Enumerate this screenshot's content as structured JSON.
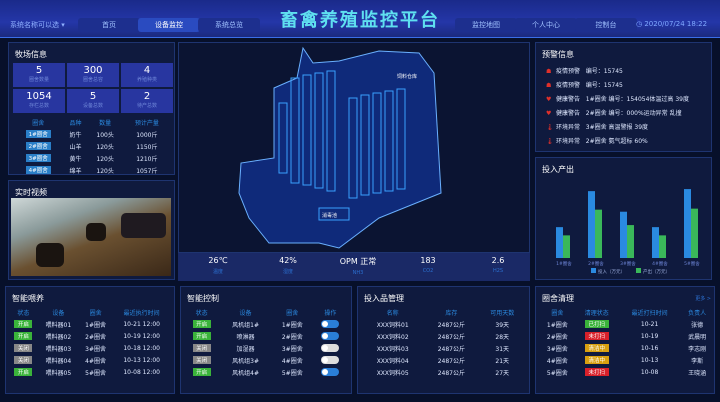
{
  "header": {
    "title": "畜禽养殖监控平台",
    "system_select": "系统名称可以选",
    "nav": [
      "首页",
      "设备监控",
      "系统总览",
      "监控地图",
      "个人中心",
      "控制台"
    ],
    "active": "设备监控",
    "datetime": "2020/07/24  18:22"
  },
  "farm": {
    "title": "牧场信息",
    "stats": [
      {
        "value": "5",
        "label": "圈舍数量"
      },
      {
        "value": "300",
        "label": "圈舍总容"
      },
      {
        "value": "4",
        "label": "养殖种类"
      },
      {
        "value": "1054",
        "label": "存栏总数"
      },
      {
        "value": "5",
        "label": "设备总数"
      },
      {
        "value": "2",
        "label": "待产总数"
      }
    ],
    "columns": [
      "圈舍",
      "品种",
      "数量",
      "预计产量"
    ],
    "rows": [
      [
        "1#圈舍",
        "奶牛",
        "100头",
        "1000斤"
      ],
      [
        "2#圈舍",
        "山羊",
        "120头",
        "1150斤"
      ],
      [
        "3#圈舍",
        "黄牛",
        "120头",
        "1210斤"
      ],
      [
        "4#圈舍",
        "绵羊",
        "120头",
        "1057斤"
      ]
    ]
  },
  "video": {
    "title": "实时视频"
  },
  "map": {
    "labels": [
      "消毒池",
      "饲料仓库"
    ]
  },
  "env": [
    {
      "value": "26℃",
      "label": "温度"
    },
    {
      "value": "42%",
      "label": "湿度"
    },
    {
      "value": "OPM 正常",
      "label": "NH3"
    },
    {
      "value": "183",
      "label": "CO2"
    },
    {
      "value": "2.6",
      "label": "H2S"
    }
  ],
  "alerts": {
    "title": "预警信息",
    "items": [
      {
        "icon": "epidemic-icon",
        "type": "疫情预警",
        "text": "编号：15745"
      },
      {
        "icon": "epidemic-icon",
        "type": "疫情预警",
        "text": "编号：15745"
      },
      {
        "icon": "heart-icon",
        "type": "健康警告",
        "text": "1#圈舍   编号：154054体温过高    39度"
      },
      {
        "icon": "heart-icon",
        "type": "健康警告",
        "text": "2#圈舍   编号：000%运动异常    乱撞"
      },
      {
        "icon": "thermometer-icon",
        "type": "环境异常",
        "text": "3#圈舍   高温警报      39度"
      },
      {
        "icon": "thermometer-icon",
        "type": "环境异常",
        "text": "2#圈舍   氨气超标      60%"
      }
    ]
  },
  "chart_data": {
    "type": "bar",
    "title": "投入产出",
    "categories": [
      "1#圈舍",
      "2#圈舍",
      "3#圈舍",
      "4#圈舍",
      "5#圈舍"
    ],
    "series": [
      {
        "name": "投入（万元）",
        "color": "#2a8ae0",
        "values": [
          30,
          65,
          45,
          30,
          67
        ]
      },
      {
        "name": "产出（万元）",
        "color": "#3ab85a",
        "values": [
          22,
          47,
          32,
          22,
          48
        ]
      }
    ],
    "ylim": [
      0,
      70
    ],
    "legend": "bottom",
    "grid": false
  },
  "feeding": {
    "title": "智能喂养",
    "columns": [
      "状态",
      "设备",
      "圈舍",
      "最近执行时间"
    ],
    "rows": [
      [
        "开启",
        "喂料器01",
        "1#圈舍",
        "10-21  12:00"
      ],
      [
        "开启",
        "喂料器02",
        "2#圈舍",
        "10-19  12:00"
      ],
      [
        "关闭",
        "喂料器03",
        "3#圈舍",
        "10-18  12:00"
      ],
      [
        "关闭",
        "喂料器04",
        "4#圈舍",
        "10-13  12:00"
      ],
      [
        "开启",
        "喂料器05",
        "5#圈舍",
        "10-08  12:00"
      ]
    ]
  },
  "control": {
    "title": "智能控制",
    "columns": [
      "状态",
      "设备",
      "圈舍",
      "操作"
    ],
    "rows": [
      [
        "开启",
        "风机组1#",
        "1#圈舍",
        true
      ],
      [
        "开启",
        "喷淋器",
        "2#圈舍",
        true
      ],
      [
        "关闭",
        "加湿器",
        "3#圈舍",
        false
      ],
      [
        "关闭",
        "风机组3#",
        "4#圈舍",
        false
      ],
      [
        "开启",
        "风机组4#",
        "5#圈舍",
        true
      ]
    ]
  },
  "inputs": {
    "title": "投入品管理",
    "columns": [
      "名称",
      "库存",
      "可用天数"
    ],
    "rows": [
      [
        "XXX饲料01",
        "2487公斤",
        "39天"
      ],
      [
        "XXX饲料02",
        "2487公斤",
        "28天"
      ],
      [
        "XXX饲料03",
        "2487公斤",
        "31天"
      ],
      [
        "XXX饲料04",
        "2487公斤",
        "21天"
      ],
      [
        "XXX饲料05",
        "2487公斤",
        "27天"
      ]
    ]
  },
  "cleaning": {
    "title": "圈舍清理",
    "more": "更多 >",
    "columns": [
      "圈舍",
      "清理状态",
      "最近打扫时间",
      "负责人"
    ],
    "rows": [
      [
        "1#圈舍",
        "已打扫",
        "10-21",
        "张德"
      ],
      [
        "2#圈舍",
        "未打扫",
        "10-19",
        "武晨明"
      ],
      [
        "3#圈舍",
        "清洁中",
        "10-16",
        "李志刚"
      ],
      [
        "4#圈舍",
        "清洁中",
        "10-13",
        "李斯"
      ],
      [
        "5#圈舍",
        "未打扫",
        "10-08",
        "王晓涵"
      ]
    ],
    "status_colors": {
      "已打扫": "#3ab33a",
      "未打扫": "#d8202a",
      "清洁中": "#d8a010"
    }
  }
}
